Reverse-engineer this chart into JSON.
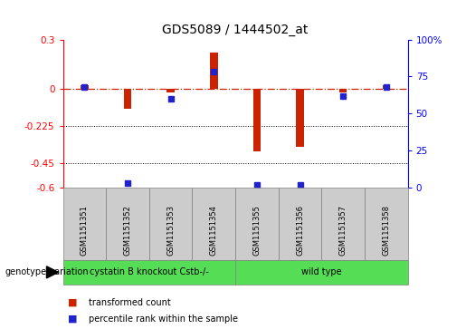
{
  "title": "GDS5089 / 1444502_at",
  "samples": [
    "GSM1151351",
    "GSM1151352",
    "GSM1151353",
    "GSM1151354",
    "GSM1151355",
    "GSM1151356",
    "GSM1151357",
    "GSM1151358"
  ],
  "transformed_count": [
    0.02,
    -0.12,
    -0.02,
    0.22,
    -0.38,
    -0.35,
    -0.02,
    0.02
  ],
  "percentile_rank": [
    68,
    3,
    60,
    78,
    2,
    2,
    62,
    68
  ],
  "ylim_left": [
    -0.6,
    0.3
  ],
  "ylim_right": [
    0,
    100
  ],
  "yticks_left": [
    0.3,
    0,
    -0.225,
    -0.45,
    -0.6
  ],
  "yticks_right": [
    100,
    75,
    50,
    25,
    0
  ],
  "hlines": [
    -0.225,
    -0.45
  ],
  "zero_line": 0,
  "bar_color": "#cc2200",
  "dot_color": "#2222cc",
  "group1_label": "cystatin B knockout Cstb-/-",
  "group1_count": 4,
  "group2_label": "wild type",
  "group2_count": 4,
  "group_label_prefix": "genotype/variation",
  "legend_red": "transformed count",
  "legend_blue": "percentile rank within the sample",
  "bar_width": 0.18,
  "background_color": "#ffffff",
  "plot_bg": "#ffffff",
  "zero_line_color": "#cc2200",
  "group_color": "#55dd55",
  "sample_box_color": "#cccccc"
}
